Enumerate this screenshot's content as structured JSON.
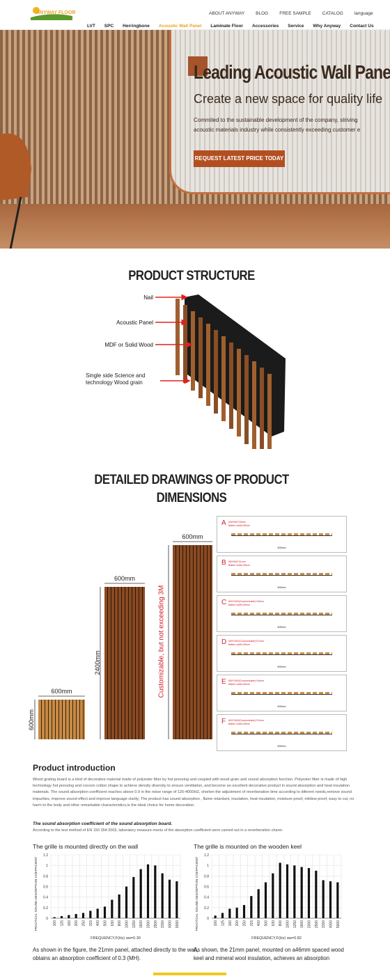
{
  "header": {
    "logo": "ANYWAY FLOOR",
    "top_nav": [
      "ABOUT ANYWAY",
      "BLOG",
      "FREE SAMPLE",
      "CATALOG",
      "language"
    ],
    "main_nav": [
      "LVT",
      "SPC",
      "Herringbone",
      "Acoustic Wall Panel",
      "Laminate Floor",
      "Accessories",
      "Service",
      "Why Anyway",
      "Contact Us"
    ]
  },
  "hero": {
    "title": "Leading Acoustic Wall Panel",
    "subtitle": "Create a new space for quality life",
    "text_lines": [
      "Commited to the sustainable development of the company, striving",
      "acoustic materials industry while consistently exceeding customer e"
    ],
    "button": "REQUEST LATEST PRICE TODAY"
  },
  "structure": {
    "title": "PRODUCT STRUCTURE",
    "labels": [
      "Nail",
      "Acoustic Panel",
      "MDF or Solid Wood",
      "Single side Science and technology Wood grain"
    ]
  },
  "dimensions": {
    "title_lines": [
      "DETAILED DRAWINGS OF PRODUCT",
      "DIMENSIONS"
    ],
    "widths": [
      "600mm",
      "600mm",
      "600mm"
    ],
    "heights": [
      "600mm",
      "2400mm",
      "Customizable, but not exceeding 3M"
    ],
    "details": [
      {
        "letter": "A",
        "spec": "600*600*18mm",
        "batten": "Batten width:28mm",
        "width": "600mm"
      },
      {
        "letter": "B",
        "spec": "600*600*21mm",
        "batten": "Batten width:28mm",
        "width": "600mm"
      },
      {
        "letter": "C",
        "spec": "600*2400(Customizable)*18mm",
        "batten": "Batten width:28mm",
        "width": "600mm"
      },
      {
        "letter": "D",
        "spec": "600*2400(Customizable)*21mm",
        "batten": "Batten width:28mm",
        "width": "600mm"
      },
      {
        "letter": "E",
        "spec": "600*2400(Customizable)*18mm",
        "batten": "Batten width:28mm",
        "width": "600mm"
      },
      {
        "letter": "F",
        "spec": "600*2400(Customizable)*21mm",
        "batten": "Batten width:28mm",
        "width": "600mm"
      }
    ]
  },
  "intro": {
    "title": "Product introduction",
    "text": "Wood grating board is a kind of decorative material made of polyester fiber by hot pressing and coupled with wood grain and sound absorption function. Polyester fiber is made of high technology hot pressing and cocoon cotton shape to achieve density diversity to ensure ventilation, and become an excellent decorative product in sound absorption and heat insulation materials. The sound absorption coefficient reaches above 0.9 in the noise range of 125-4000HZ, shorten the adjustment of reverberation time according to diferent needs,remove sound impurities, improve sound effect and improve language clarity; The product has sound absorption , flame retardant, insulation, heat insulation, moisture-proof, mildew proof, easy to cut, no harm to the body and other remarkable characteristics,is the ideal choice for home decoration.",
    "sub_title": "The sound absorption coefficient of the sound absorption board.",
    "sub_text": "According to the test method of EN 150 354:2003, laboratory measure menis of the absorption coefficient were carried out in a reverberation charer."
  },
  "charts": [
    {
      "type": "bar",
      "title": "The grille is mounted directly on the wall",
      "y_label": "PRACTICAL SOUND ABSORPTION COEFFICIENT",
      "x_label": "FREQUENCY,F(Hz)  αw=0.30",
      "categories": [
        "100",
        "125",
        "160",
        "200",
        "250",
        "315",
        "400",
        "500",
        "630",
        "800",
        "1000",
        "1250",
        "1600",
        "2000",
        "2500",
        "3150",
        "4000",
        "5000"
      ],
      "values": [
        0.02,
        0.04,
        0.06,
        0.08,
        0.1,
        0.14,
        0.18,
        0.22,
        0.35,
        0.45,
        0.6,
        0.78,
        0.93,
        1.02,
        1.0,
        0.85,
        0.73,
        0.7
      ],
      "ylim": [
        0,
        1.2
      ],
      "yticks": [
        0,
        0.2,
        0.4,
        0.6,
        0.8,
        1,
        1.2
      ],
      "color": "#111111",
      "caption": "As shown in the figure, the 21mm panel, attached directly to the wall, obtains an absorption coefficient of 0.3 (MH)."
    },
    {
      "type": "bar",
      "title": "The grille is mounted on the wooden keel",
      "y_label": "PRACTICAL SOUND ABSORPTION COEFFICIENT",
      "x_label": "FREQUENCY,F(Hz)  αw=0.82",
      "categories": [
        "100",
        "125",
        "160",
        "200",
        "250",
        "315",
        "400",
        "500",
        "630",
        "800",
        "1000",
        "1250",
        "1600",
        "2000",
        "2500",
        "3150",
        "4000",
        "5000"
      ],
      "values": [
        0.05,
        0.1,
        0.18,
        0.2,
        0.25,
        0.42,
        0.55,
        0.68,
        0.85,
        1.05,
        1.02,
        1.0,
        0.97,
        0.95,
        0.9,
        0.72,
        0.7,
        0.68
      ],
      "ylim": [
        0,
        1.2
      ],
      "yticks": [
        0,
        0.2,
        0.4,
        0.6,
        0.8,
        1,
        1.2
      ],
      "color": "#111111",
      "caption": "As shown, the 21mm panel, mounted on a46mm spaced wood keel and mineral wool insulation, achieves an absorption"
    }
  ]
}
